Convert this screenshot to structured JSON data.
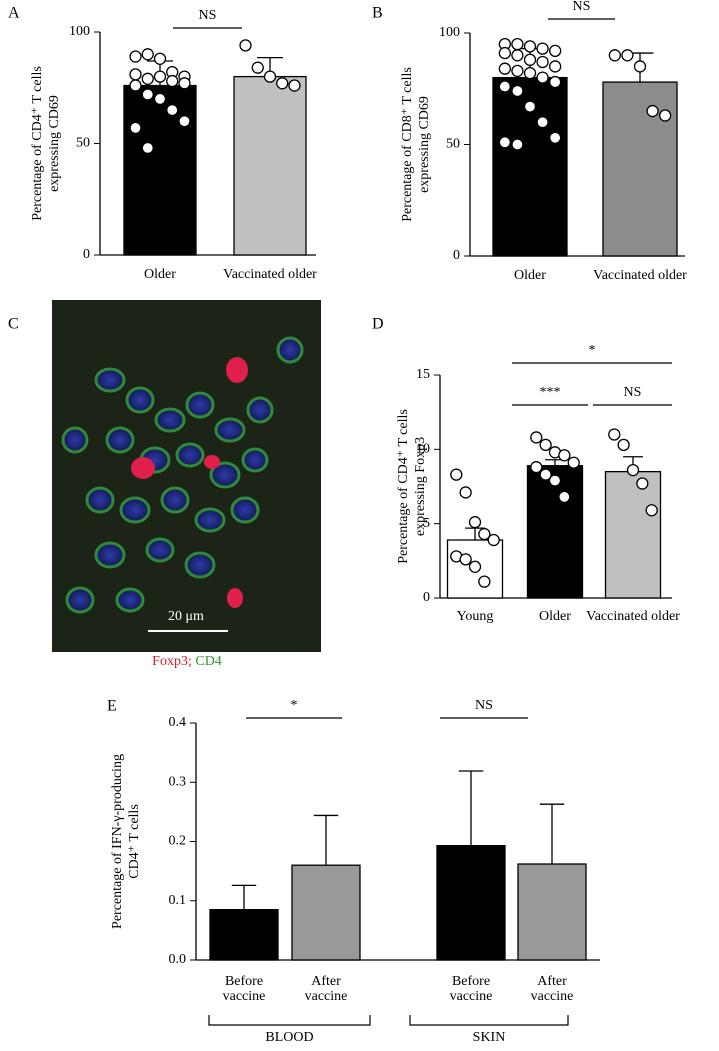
{
  "chart_data": [
    {
      "type": "bar",
      "panel": "A",
      "y_label": [
        "Percentage of CD4⁺ T cells",
        "expressing CD69"
      ],
      "categories": [
        "Older",
        "Vaccinated older"
      ],
      "values": [
        76,
        80
      ],
      "errors": [
        11,
        8.5
      ],
      "colors": [
        "#000000",
        "#c0c0c0"
      ],
      "points": [
        [
          89,
          90,
          88,
          82,
          80,
          81,
          79,
          80,
          78,
          77,
          76,
          72,
          70,
          65,
          60,
          57,
          48
        ],
        [
          94,
          84,
          80,
          77,
          76
        ]
      ],
      "ylim": [
        0,
        100
      ],
      "yticks": [
        0,
        50,
        100
      ],
      "significance": [
        "NS"
      ]
    },
    {
      "type": "bar",
      "panel": "B",
      "y_label": [
        "Percentage of CD8⁺ T cells",
        "expressing CD69"
      ],
      "categories": [
        "Older",
        "Vaccinated older"
      ],
      "values": [
        80,
        78
      ],
      "errors": [
        13,
        13
      ],
      "colors": [
        "#000000",
        "#8c8c8c"
      ],
      "points": [
        [
          95,
          95,
          94,
          93,
          92,
          91,
          90,
          88,
          87,
          85,
          84,
          83,
          82,
          80,
          78,
          76,
          74,
          67,
          60,
          53,
          51,
          50
        ],
        [
          90,
          90,
          85,
          65,
          63
        ]
      ],
      "ylim": [
        0,
        100
      ],
      "yticks": [
        0,
        50,
        100
      ],
      "significance": [
        "NS"
      ]
    },
    {
      "type": "bar",
      "panel": "D",
      "y_label": [
        "Percentage of CD4⁺ T cells",
        "expressing Foxp3"
      ],
      "categories": [
        "Young",
        "Older",
        "Vaccinated older"
      ],
      "values": [
        3.9,
        8.9,
        8.5
      ],
      "errors": [
        0.8,
        0.4,
        1.0
      ],
      "colors": [
        "#ffffff",
        "#000000",
        "#c0c0c0"
      ],
      "points": [
        [
          8.3,
          7.1,
          5.1,
          4.3,
          3.9,
          2.8,
          2.6,
          2.1,
          1.1
        ],
        [
          10.8,
          10.3,
          9.8,
          9.6,
          9.1,
          8.8,
          8.3,
          7.9,
          6.8
        ],
        [
          11.0,
          10.3,
          8.6,
          7.7,
          5.9
        ]
      ],
      "ylim": [
        0,
        15
      ],
      "yticks": [
        0,
        5,
        10,
        15
      ],
      "significance": [
        "***",
        "NS",
        "*"
      ]
    },
    {
      "type": "bar",
      "panel": "E",
      "y_label": [
        "Percentage of IFN-γ-producing",
        "CD4⁺ T cells"
      ],
      "categories": [
        [
          "Before",
          "vaccine"
        ],
        [
          "After",
          "vaccine"
        ],
        [
          "Before",
          "vaccine"
        ],
        [
          "After",
          "vaccine"
        ]
      ],
      "groups": [
        "BLOOD",
        "SKIN"
      ],
      "values": [
        0.085,
        0.16,
        0.193,
        0.162
      ],
      "errors": [
        0.041,
        0.084,
        0.126,
        0.101
      ],
      "colors": [
        "#000000",
        "#999999",
        "#000000",
        "#999999"
      ],
      "ylim": [
        0,
        0.4
      ],
      "yticks": [
        {
          "value": 0,
          "label": "0.0"
        },
        0.1,
        0.2,
        0.3,
        0.4
      ],
      "significance": [
        "*",
        "NS"
      ]
    }
  ],
  "image_panel": {
    "panel": "C",
    "scale_bar": "20 μm",
    "caption": [
      "Foxp3;",
      "CD4"
    ]
  }
}
